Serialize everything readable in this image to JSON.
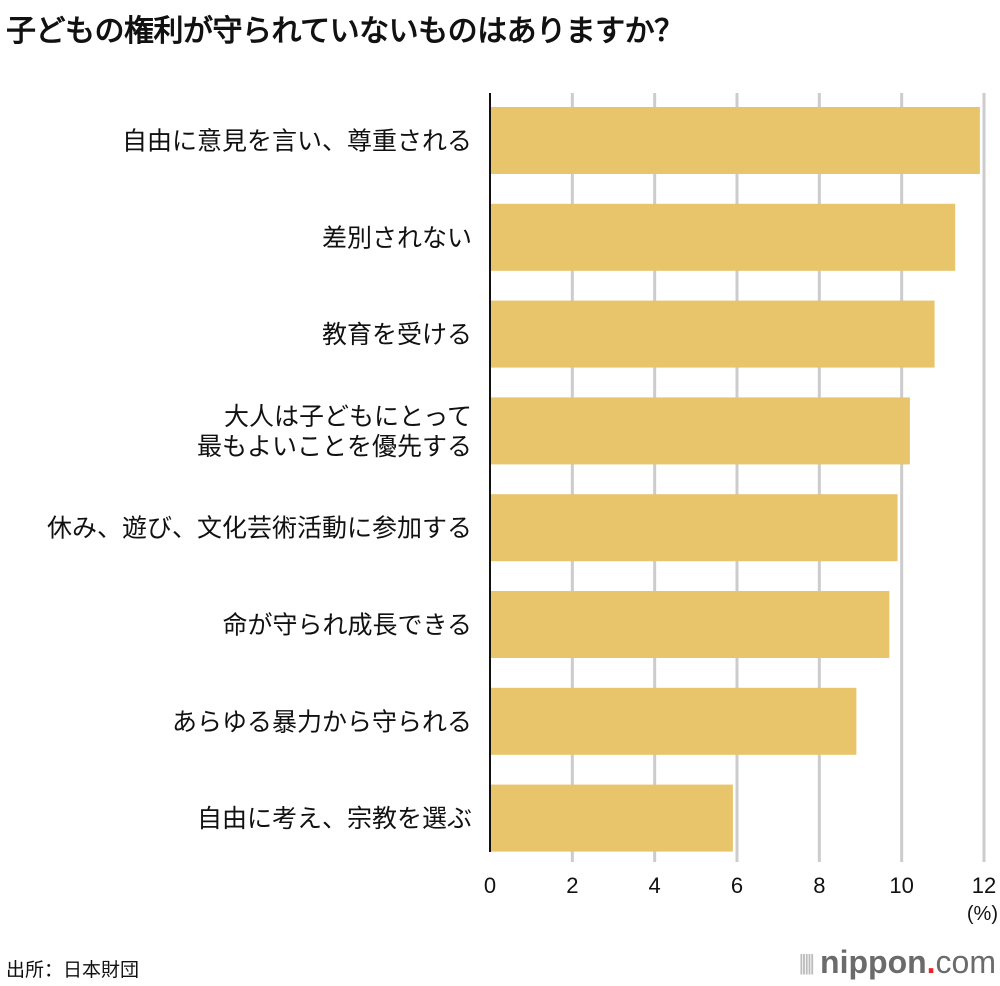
{
  "chart_data": {
    "type": "bar",
    "orientation": "horizontal",
    "title": "子どもの権利が守られていないものはありますか？",
    "categories": [
      "自由に意見を言い、尊重される",
      "差別されない",
      "教育を受ける",
      "大人は子どもにとって\n最もよいことを優先する",
      "休み、遊び、文化芸術活動に参加する",
      "命が守られ成長できる",
      "あらゆる暴力から守られる",
      "自由に考え、宗教を選ぶ"
    ],
    "values": [
      11.9,
      11.3,
      10.8,
      10.2,
      9.9,
      9.7,
      8.9,
      5.9
    ],
    "xlim": [
      0,
      12
    ],
    "xticks": [
      "0",
      "2",
      "4",
      "6",
      "8",
      "10",
      "12"
    ],
    "xlabel": "(%)",
    "ylabel": "",
    "grid": true,
    "bar_color": "#e8c46b",
    "grid_color": "#cccccc"
  },
  "footer": {
    "source": "出所：日本財団",
    "logo_brand": "nippon",
    "logo_dot": ".",
    "logo_com": "com"
  }
}
